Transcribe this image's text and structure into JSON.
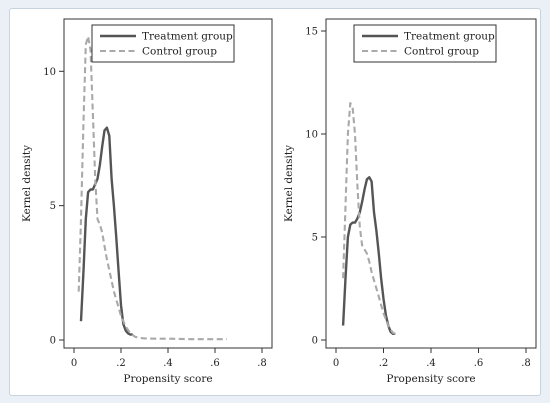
{
  "colors": {
    "treatment": "#555555",
    "control": "#a9a9a9",
    "frame": "#333333",
    "background": "#ffffff"
  },
  "chart_data": [
    {
      "type": "line",
      "xlabel": "Propensity score",
      "ylabel": "Kernel density",
      "xlim": [
        0,
        0.8
      ],
      "ylim": [
        0,
        11.5
      ],
      "xticks": [
        0,
        0.2,
        0.4,
        0.6,
        0.8
      ],
      "xtick_labels": [
        "0",
        ".2",
        ".4",
        ".6",
        ".8"
      ],
      "yticks": [
        0,
        5,
        10
      ],
      "ytick_labels": [
        "0",
        "5",
        "10"
      ],
      "legend": "top-right",
      "series": [
        {
          "name": "Treatment group",
          "style": "solid",
          "x": [
            0.03,
            0.04,
            0.05,
            0.06,
            0.07,
            0.08,
            0.09,
            0.1,
            0.11,
            0.12,
            0.13,
            0.14,
            0.15,
            0.16,
            0.17,
            0.18,
            0.19,
            0.2,
            0.21,
            0.22,
            0.23,
            0.24,
            0.25
          ],
          "values": [
            0.7,
            2.5,
            4.5,
            5.5,
            5.6,
            5.6,
            5.8,
            6.0,
            6.5,
            7.2,
            7.8,
            7.9,
            7.6,
            6.0,
            5.0,
            3.8,
            2.5,
            1.3,
            0.6,
            0.35,
            0.25,
            0.2,
            0.2
          ]
        },
        {
          "name": "Control group",
          "style": "dashed",
          "x": [
            0.02,
            0.03,
            0.04,
            0.05,
            0.06,
            0.07,
            0.08,
            0.09,
            0.1,
            0.11,
            0.12,
            0.13,
            0.14,
            0.15,
            0.16,
            0.17,
            0.18,
            0.19,
            0.2,
            0.22,
            0.24,
            0.26,
            0.28,
            0.3,
            0.35,
            0.4,
            0.45,
            0.5,
            0.55,
            0.6,
            0.65
          ],
          "values": [
            1.8,
            4.5,
            8.0,
            11.0,
            11.3,
            10.8,
            8.5,
            6.0,
            4.5,
            4.3,
            4.0,
            3.5,
            3.0,
            2.6,
            2.2,
            1.8,
            1.5,
            1.2,
            0.9,
            0.5,
            0.25,
            0.12,
            0.08,
            0.06,
            0.05,
            0.05,
            0.04,
            0.03,
            0.03,
            0.03,
            0.03
          ]
        }
      ]
    },
    {
      "type": "line",
      "xlabel": "Propensity score",
      "ylabel": "Kernel density",
      "xlim": [
        0,
        0.8
      ],
      "ylim": [
        0,
        15
      ],
      "xticks": [
        0,
        0.2,
        0.4,
        0.6,
        0.8
      ],
      "xtick_labels": [
        "0",
        ".2",
        ".4",
        ".6",
        ".8"
      ],
      "yticks": [
        0,
        5,
        10,
        15
      ],
      "ytick_labels": [
        "0",
        "5",
        "10",
        "15"
      ],
      "legend": "top-right",
      "series": [
        {
          "name": "Treatment group",
          "style": "solid",
          "x": [
            0.03,
            0.04,
            0.05,
            0.06,
            0.07,
            0.08,
            0.09,
            0.1,
            0.11,
            0.12,
            0.13,
            0.14,
            0.15,
            0.16,
            0.17,
            0.18,
            0.19,
            0.2,
            0.21,
            0.22,
            0.23,
            0.24,
            0.25
          ],
          "values": [
            0.7,
            3.0,
            5.0,
            5.6,
            5.7,
            5.7,
            5.9,
            6.2,
            6.7,
            7.3,
            7.8,
            7.9,
            7.7,
            6.2,
            5.3,
            4.2,
            3.0,
            2.0,
            1.2,
            0.7,
            0.4,
            0.3,
            0.3
          ]
        },
        {
          "name": "Control group",
          "style": "dashed",
          "x": [
            0.03,
            0.04,
            0.05,
            0.06,
            0.07,
            0.08,
            0.09,
            0.1,
            0.11,
            0.12,
            0.13,
            0.14,
            0.15,
            0.16,
            0.17,
            0.18,
            0.19,
            0.2,
            0.21,
            0.22,
            0.23,
            0.24,
            0.25,
            0.26
          ],
          "values": [
            3.0,
            6.5,
            10.0,
            11.5,
            11.3,
            10.0,
            7.5,
            5.5,
            4.6,
            4.4,
            4.2,
            3.8,
            3.3,
            2.9,
            2.5,
            2.1,
            1.7,
            1.3,
            1.0,
            0.7,
            0.5,
            0.35,
            0.3,
            0.3
          ]
        }
      ]
    }
  ]
}
